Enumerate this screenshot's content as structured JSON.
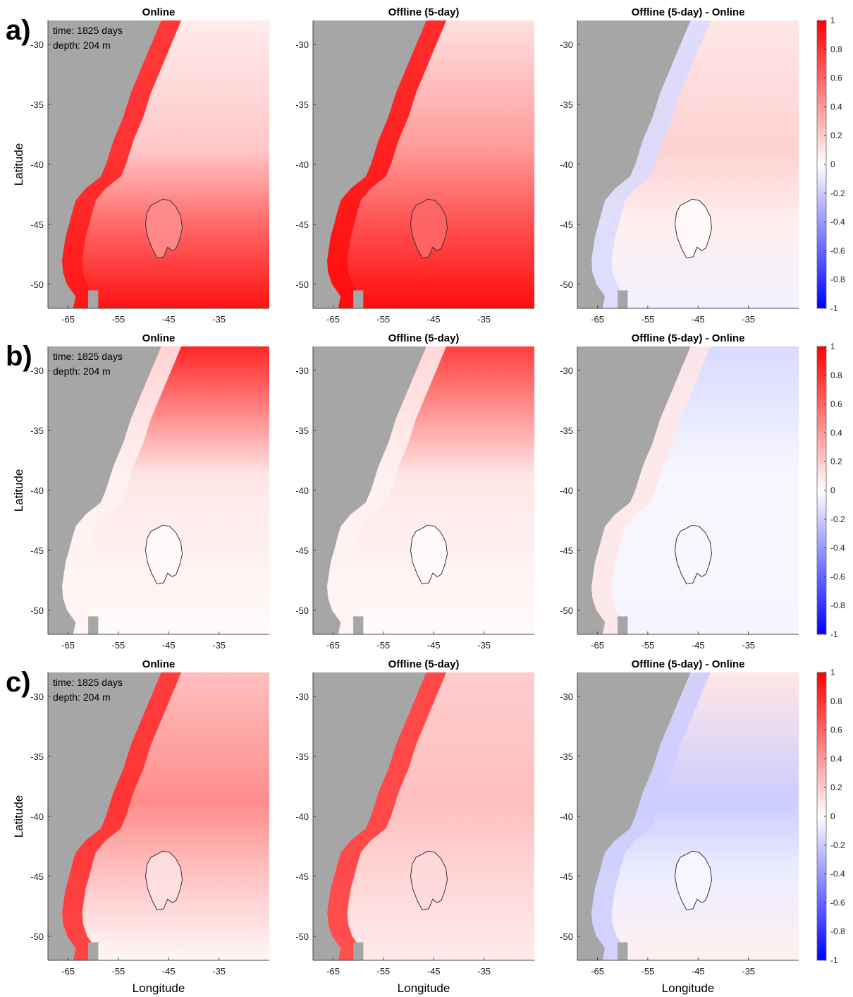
{
  "chart_data": {
    "type": "heatmap",
    "colormap": {
      "negative": "#0000ff",
      "zero": "#ffffff",
      "positive": "#ff0000"
    },
    "land_color": "#a6a6a6",
    "colorbar": {
      "ticks": [
        "1",
        "0.8",
        "0.6",
        "0.4",
        "0.2",
        "0",
        "-0.2",
        "-0.4",
        "-0.6",
        "-0.8",
        "-1"
      ],
      "clim": [
        -1,
        1
      ]
    },
    "xlim": [
      -69,
      -25
    ],
    "ylim": [
      -52,
      -28
    ],
    "xticks": [
      -65,
      -55,
      -45,
      -35
    ],
    "xtick_labels": [
      "-65",
      "-55",
      "-45",
      "-35"
    ],
    "yticks": [
      -30,
      -35,
      -40,
      -45,
      -50
    ],
    "ytick_labels": [
      "-30",
      "-35",
      "-40",
      "-45",
      "-50"
    ],
    "xlabel": "Longitude",
    "ylabel": "Latitude",
    "annotation": {
      "time": "time: 1825 days",
      "depth": "depth: 204 m"
    },
    "panel_titles": [
      "Online",
      "Offline (5-day)",
      "Offline (5-day) - Online"
    ],
    "rows": [
      {
        "label": "a)",
        "fields": [
          {
            "north": 0.08,
            "mid": 0.22,
            "south": 0.93,
            "shelf": 0.9,
            "eddy": 0.45
          },
          {
            "north": 0.12,
            "mid": 0.4,
            "south": 0.95,
            "shelf": 0.95,
            "eddy": 0.6
          },
          {
            "north": 0.1,
            "mid": 0.18,
            "south": -0.05,
            "shelf": -0.15,
            "eddy": 0.02
          }
        ]
      },
      {
        "label": "b)",
        "fields": [
          {
            "north": 0.85,
            "mid": 0.1,
            "south": 0.02,
            "shelf": 0.05,
            "eddy": 0.02
          },
          {
            "north": 0.75,
            "mid": 0.1,
            "south": 0.02,
            "shelf": 0.05,
            "eddy": 0.02
          },
          {
            "north": -0.15,
            "mid": -0.03,
            "south": -0.04,
            "shelf": 0.1,
            "eddy": -0.03
          }
        ]
      },
      {
        "label": "c)",
        "fields": [
          {
            "north": 0.25,
            "mid": 0.45,
            "south": 0.03,
            "shelf": 0.85,
            "eddy": 0.12
          },
          {
            "north": 0.2,
            "mid": 0.25,
            "south": 0.08,
            "shelf": 0.8,
            "eddy": 0.15
          },
          {
            "north": 0.1,
            "mid": -0.2,
            "south": 0.06,
            "shelf": -0.2,
            "eddy": -0.03
          }
        ]
      }
    ],
    "grid": false,
    "legend": "colorbar right"
  }
}
